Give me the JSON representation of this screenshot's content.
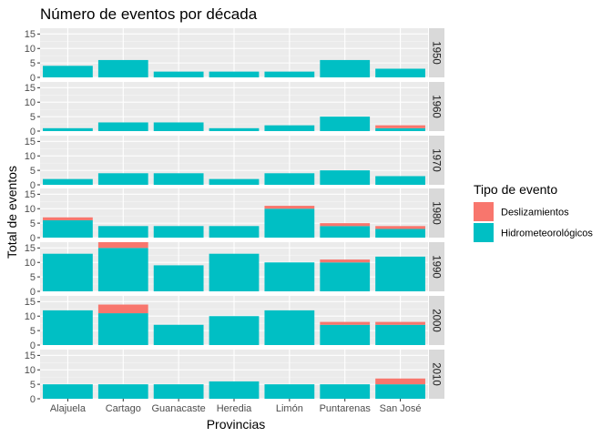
{
  "chart_data": {
    "type": "bar",
    "stacked": true,
    "faceted_by": "decade",
    "title": "Número de eventos por década",
    "xlabel": "Provincias",
    "ylabel": "Total de eventos",
    "ylim": [
      0,
      17
    ],
    "yticks": [
      0,
      5,
      10,
      15
    ],
    "grid": true,
    "legend": {
      "title": "Tipo de evento",
      "placement": "right",
      "entries": [
        {
          "name": "Deslizamientos",
          "color": "#F8766D"
        },
        {
          "name": "Hidrometeorológicos",
          "color": "#00BFC4"
        }
      ]
    },
    "categories": [
      "Alajuela",
      "Cartago",
      "Guanacaste",
      "Heredia",
      "Limón",
      "Puntarenas",
      "San José"
    ],
    "facets": [
      {
        "label": "1950",
        "series": [
          {
            "name": "Deslizamientos",
            "values": [
              0,
              0,
              0,
              0,
              0,
              0,
              0
            ]
          },
          {
            "name": "Hidrometeorológicos",
            "values": [
              4,
              6,
              2,
              2,
              2,
              6,
              3
            ]
          }
        ]
      },
      {
        "label": "1960",
        "series": [
          {
            "name": "Deslizamientos",
            "values": [
              0,
              0,
              0,
              0,
              0,
              0,
              1
            ]
          },
          {
            "name": "Hidrometeorológicos",
            "values": [
              1,
              3,
              3,
              1,
              2,
              5,
              1
            ]
          }
        ]
      },
      {
        "label": "1970",
        "series": [
          {
            "name": "Deslizamientos",
            "values": [
              0,
              0,
              0,
              0,
              0,
              0,
              0
            ]
          },
          {
            "name": "Hidrometeorológicos",
            "values": [
              2,
              4,
              4,
              2,
              4,
              5,
              3
            ]
          }
        ]
      },
      {
        "label": "1980",
        "series": [
          {
            "name": "Deslizamientos",
            "values": [
              1,
              0,
              0,
              0,
              1,
              1,
              1
            ]
          },
          {
            "name": "Hidrometeorológicos",
            "values": [
              6,
              4,
              4,
              4,
              10,
              4,
              3
            ]
          }
        ]
      },
      {
        "label": "1990",
        "series": [
          {
            "name": "Deslizamientos",
            "values": [
              0,
              2,
              0,
              0,
              0,
              1,
              0
            ]
          },
          {
            "name": "Hidrometeorológicos",
            "values": [
              13,
              15,
              9,
              13,
              10,
              10,
              12
            ]
          }
        ]
      },
      {
        "label": "2000",
        "series": [
          {
            "name": "Deslizamientos",
            "values": [
              0,
              3,
              0,
              0,
              0,
              1,
              1
            ]
          },
          {
            "name": "Hidrometeorológicos",
            "values": [
              12,
              11,
              7,
              10,
              12,
              7,
              7
            ]
          }
        ]
      },
      {
        "label": "2010",
        "series": [
          {
            "name": "Deslizamientos",
            "values": [
              0,
              0,
              0,
              0,
              0,
              0,
              2
            ]
          },
          {
            "name": "Hidrometeorológicos",
            "values": [
              5,
              5,
              5,
              6,
              5,
              5,
              5
            ]
          }
        ]
      }
    ]
  }
}
